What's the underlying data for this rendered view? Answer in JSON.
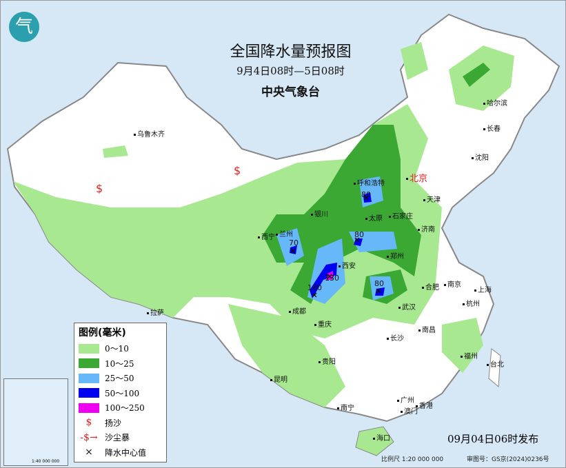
{
  "title": "全国降水量预报图",
  "period": "9月4日08时—5日08时",
  "issuer": "中央气象台",
  "publish_time": "09月04日06时发布",
  "scale": "比例尺 1:20 000 000",
  "map_number": "审图号：GS京(2024)0236号",
  "legend": {
    "title": "图例(毫米)",
    "items": [
      {
        "label": "0～10",
        "color": "#a8e890"
      },
      {
        "label": "10～25",
        "color": "#3aa832"
      },
      {
        "label": "25～50",
        "color": "#66b8f8"
      },
      {
        "label": "50～100",
        "color": "#0000f0"
      },
      {
        "label": "100～250",
        "color": "#f000f0"
      }
    ],
    "symbols": [
      {
        "label": "扬沙",
        "icon": "blowing-sand-icon"
      },
      {
        "label": "沙尘暴",
        "icon": "sandstorm-icon"
      },
      {
        "label": "降水中心值",
        "icon": "cross-icon"
      }
    ]
  },
  "cities": [
    "乌鲁木齐",
    "哈尔滨",
    "长春",
    "沈阳",
    "呼和浩特",
    "北京",
    "天津",
    "银川",
    "太原",
    "石家庄",
    "济南",
    "西宁",
    "兰州",
    "郑州",
    "西安",
    "合肥",
    "南京",
    "上海",
    "成都",
    "武汉",
    "杭州",
    "拉萨",
    "重庆",
    "长沙",
    "南昌",
    "福州",
    "台北",
    "贵阳",
    "昆明",
    "南宁",
    "广州",
    "澳门",
    "香港",
    "海口"
  ],
  "rain_centers": [
    "80",
    "80",
    "70",
    "80",
    "130",
    "180"
  ],
  "inset_scale": "1:40 000 000"
}
